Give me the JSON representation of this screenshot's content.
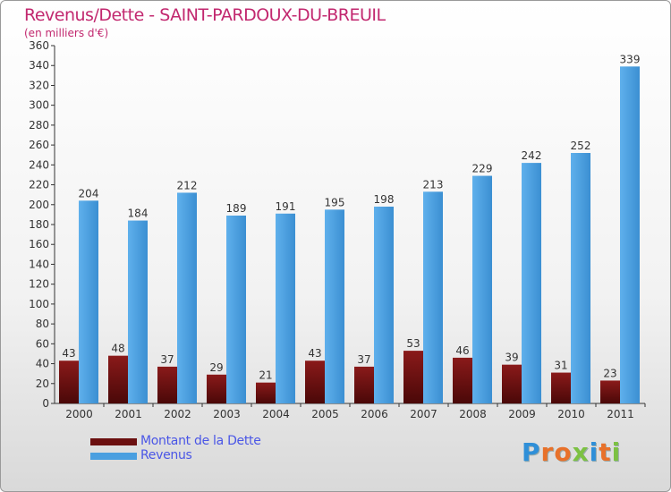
{
  "header": {
    "title": "Revenus/Dette - SAINT-PARDOUX-DU-BREUIL",
    "subtitle": "(en milliers d'€)"
  },
  "legend": {
    "items": [
      {
        "label": "Montant de la Dette",
        "color": "#6b0f0f"
      },
      {
        "label": "Revenus",
        "color": "#4a9fe0"
      }
    ]
  },
  "logo": {
    "text": "Proxiti",
    "letters": [
      "P",
      "r",
      "o",
      "x",
      "i",
      "t",
      "i"
    ],
    "colors": [
      "#2f8fd8",
      "#e8712a",
      "#e8712a",
      "#7cc142",
      "#2f8fd8",
      "#e8712a",
      "#7cc142"
    ]
  },
  "colors": {
    "title": "#c2286f",
    "dette": "#6b0f0f",
    "revenus": "#4a9fe0",
    "axis": "#333333"
  },
  "chart_data": {
    "type": "bar",
    "title": "Revenus/Dette - SAINT-PARDOUX-DU-BREUIL",
    "ylabel": "(en milliers d'€)",
    "categories": [
      "2000",
      "2001",
      "2002",
      "2003",
      "2004",
      "2005",
      "2006",
      "2007",
      "2008",
      "2009",
      "2010",
      "2011"
    ],
    "series": [
      {
        "name": "Montant de la Dette",
        "values": [
          43,
          48,
          37,
          29,
          21,
          43,
          37,
          53,
          46,
          39,
          31,
          23
        ]
      },
      {
        "name": "Revenus",
        "values": [
          204,
          184,
          212,
          189,
          191,
          195,
          198,
          213,
          229,
          242,
          252,
          339
        ]
      }
    ],
    "ylim": [
      0,
      360
    ],
    "yticks": [
      0,
      20,
      40,
      60,
      80,
      100,
      120,
      140,
      160,
      180,
      200,
      220,
      240,
      260,
      280,
      300,
      320,
      340,
      360
    ],
    "grid": false,
    "legend_position": "bottom-left"
  }
}
